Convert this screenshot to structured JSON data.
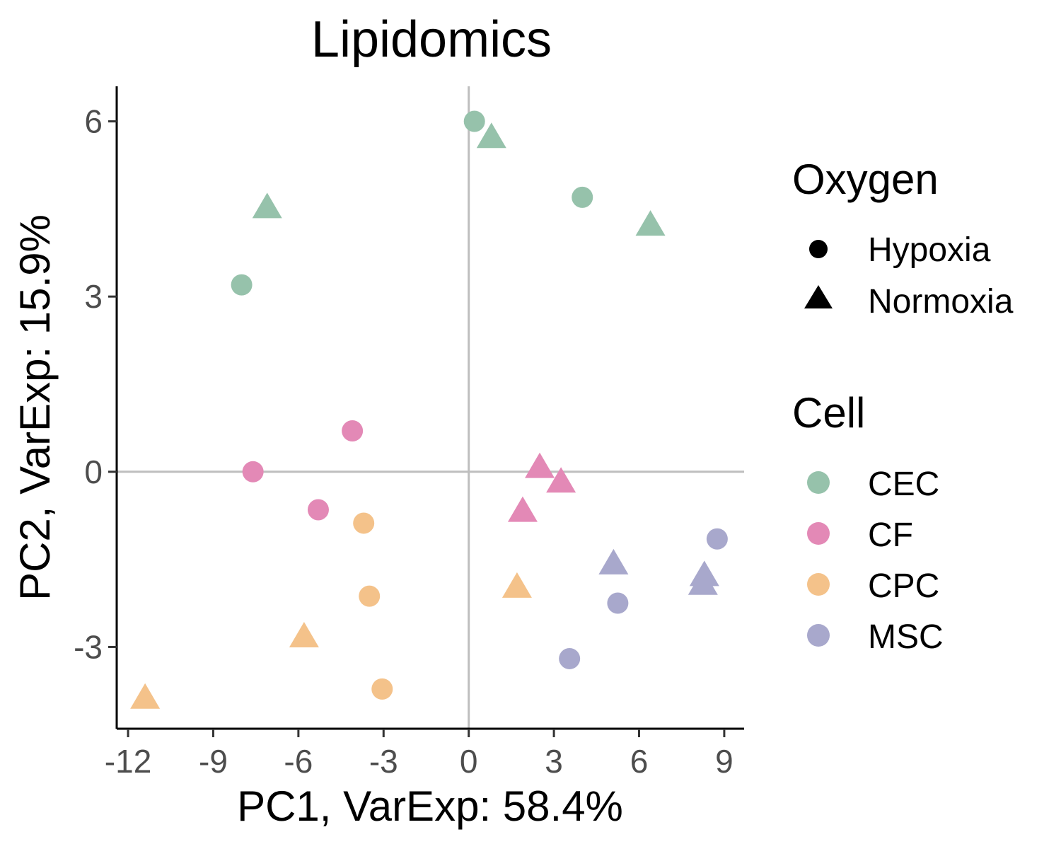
{
  "chart_data": {
    "type": "scatter",
    "title": "Lipidomics",
    "xlabel": "PC1, VarExp: 58.4%",
    "ylabel": "PC2, VarExp: 15.9%",
    "xlim": [
      -12.4,
      9.7
    ],
    "ylim": [
      -4.4,
      6.6
    ],
    "xticks": [
      -12,
      -9,
      -6,
      -3,
      0,
      3,
      6,
      9
    ],
    "xtick_labels": [
      "-12",
      "-9",
      "-6",
      "-3",
      "0",
      "3",
      "6",
      "9"
    ],
    "yticks": [
      -3,
      0,
      3,
      6
    ],
    "ytick_labels": [
      "-3",
      "0",
      "3",
      "6"
    ],
    "reference_lines": {
      "x": 0,
      "y": 0,
      "color": "#bebebe"
    },
    "legend_placement": "right",
    "legends": [
      {
        "title": "Oxygen",
        "items": [
          {
            "label": "Hypoxia",
            "shape": "circle"
          },
          {
            "label": "Normoxia",
            "shape": "triangle"
          }
        ]
      },
      {
        "title": "Cell",
        "items": [
          {
            "label": "CEC",
            "color": "#96c2ab"
          },
          {
            "label": "CF",
            "color": "#e389b6"
          },
          {
            "label": "CPC",
            "color": "#f4c28a"
          },
          {
            "label": "MSC",
            "color": "#a8a8cc"
          }
        ]
      }
    ],
    "points": [
      {
        "x": 0.2,
        "y": 6.0,
        "cell": "CEC",
        "oxygen": "Hypoxia"
      },
      {
        "x": 4.0,
        "y": 4.7,
        "cell": "CEC",
        "oxygen": "Hypoxia"
      },
      {
        "x": -8.0,
        "y": 3.2,
        "cell": "CEC",
        "oxygen": "Hypoxia"
      },
      {
        "x": 0.8,
        "y": 5.7,
        "cell": "CEC",
        "oxygen": "Normoxia"
      },
      {
        "x": -7.1,
        "y": 4.5,
        "cell": "CEC",
        "oxygen": "Normoxia"
      },
      {
        "x": 6.4,
        "y": 4.2,
        "cell": "CEC",
        "oxygen": "Normoxia"
      },
      {
        "x": -4.1,
        "y": 0.7,
        "cell": "CF",
        "oxygen": "Hypoxia"
      },
      {
        "x": -7.6,
        "y": 0.0,
        "cell": "CF",
        "oxygen": "Hypoxia"
      },
      {
        "x": -5.3,
        "y": -0.65,
        "cell": "CF",
        "oxygen": "Hypoxia"
      },
      {
        "x": 2.5,
        "y": 0.05,
        "cell": "CF",
        "oxygen": "Normoxia"
      },
      {
        "x": 3.25,
        "y": -0.2,
        "cell": "CF",
        "oxygen": "Normoxia"
      },
      {
        "x": 1.9,
        "y": -0.7,
        "cell": "CF",
        "oxygen": "Normoxia"
      },
      {
        "x": -3.7,
        "y": -0.88,
        "cell": "CPC",
        "oxygen": "Hypoxia"
      },
      {
        "x": -3.5,
        "y": -2.13,
        "cell": "CPC",
        "oxygen": "Hypoxia"
      },
      {
        "x": -3.05,
        "y": -3.72,
        "cell": "CPC",
        "oxygen": "Hypoxia"
      },
      {
        "x": 1.7,
        "y": -2.0,
        "cell": "CPC",
        "oxygen": "Normoxia"
      },
      {
        "x": -5.8,
        "y": -2.85,
        "cell": "CPC",
        "oxygen": "Normoxia"
      },
      {
        "x": -11.4,
        "y": -3.9,
        "cell": "CPC",
        "oxygen": "Normoxia"
      },
      {
        "x": 8.75,
        "y": -1.15,
        "cell": "MSC",
        "oxygen": "Hypoxia"
      },
      {
        "x": 5.25,
        "y": -2.25,
        "cell": "MSC",
        "oxygen": "Hypoxia"
      },
      {
        "x": 3.55,
        "y": -3.2,
        "cell": "MSC",
        "oxygen": "Hypoxia"
      },
      {
        "x": 5.1,
        "y": -1.6,
        "cell": "MSC",
        "oxygen": "Normoxia"
      },
      {
        "x": 8.3,
        "y": -1.8,
        "cell": "MSC",
        "oxygen": "Normoxia"
      },
      {
        "x": 8.25,
        "y": -1.95,
        "cell": "MSC",
        "oxygen": "Normoxia"
      }
    ]
  }
}
